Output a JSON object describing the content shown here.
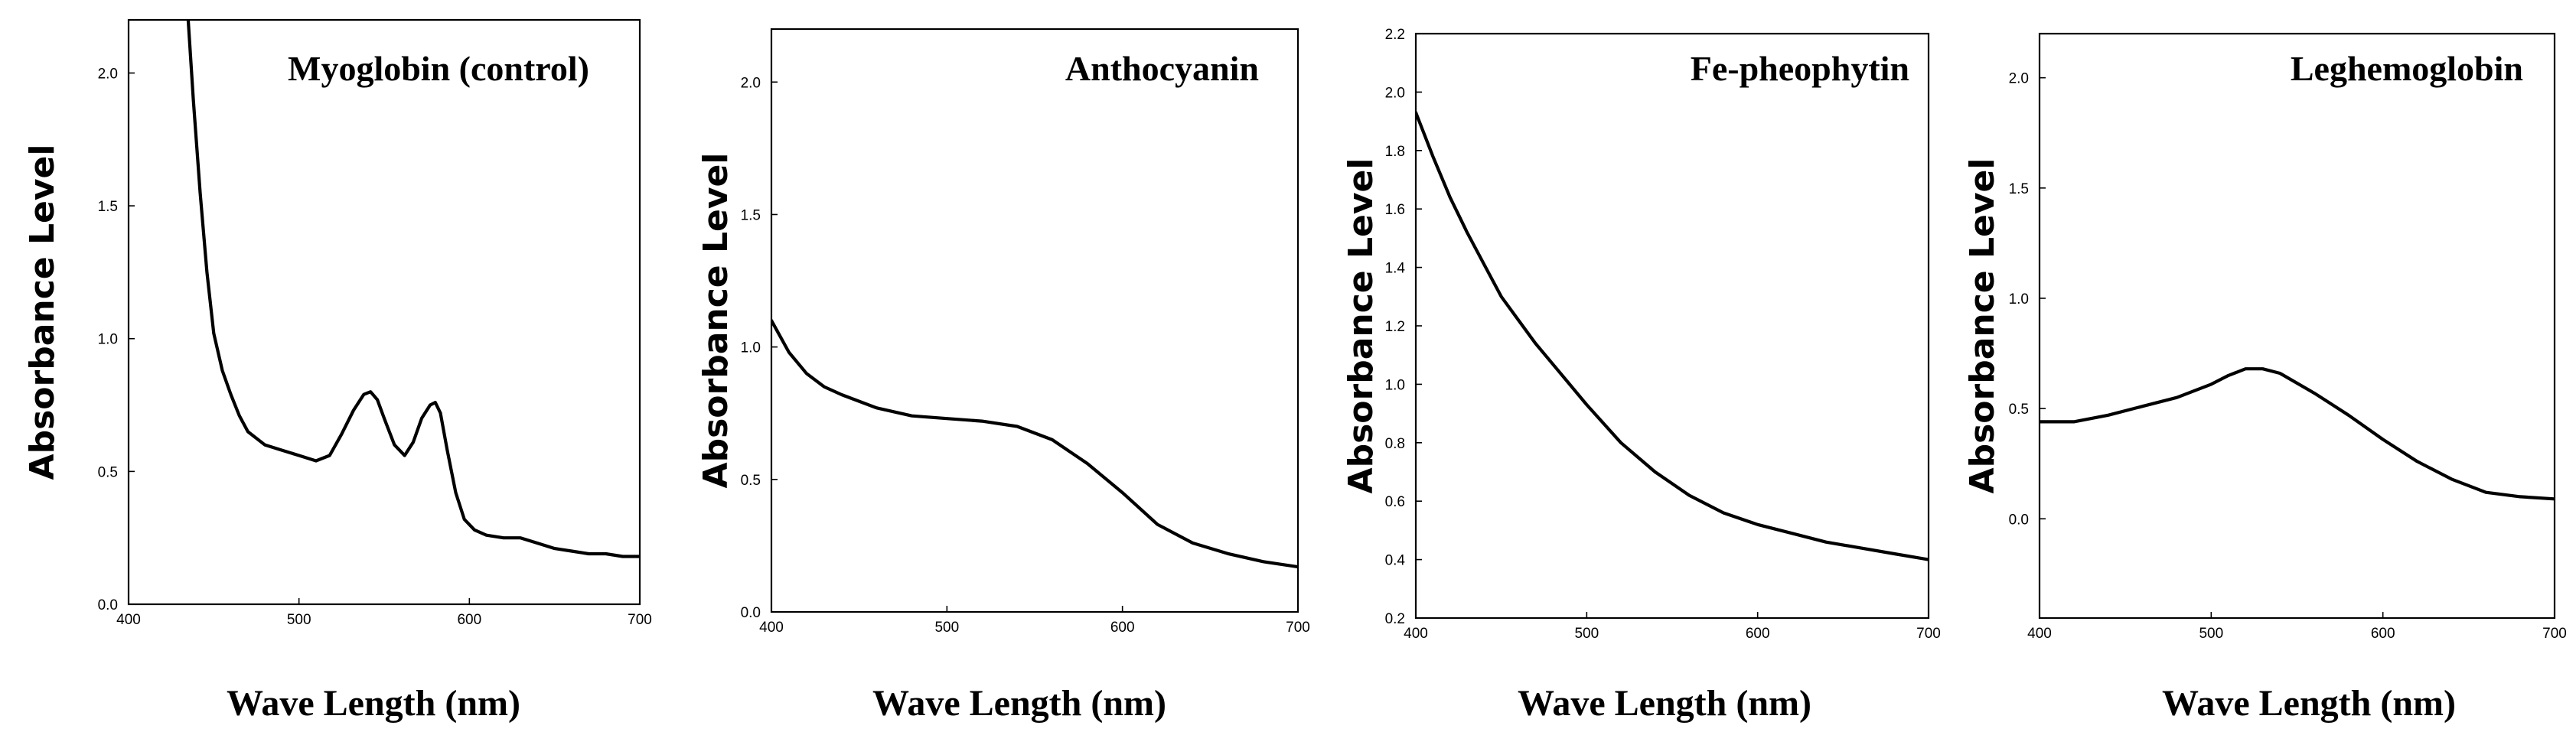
{
  "chart_data": [
    {
      "type": "line",
      "title": "Myoglobin (control)",
      "xlabel": "Wave Length (nm)",
      "ylabel": "Absorbance Level",
      "xlim": [
        400,
        700
      ],
      "ylim": [
        0.0,
        2.2
      ],
      "xticks": [
        "400",
        "500",
        "600",
        "700"
      ],
      "yticks": [
        "0.0",
        "0.5",
        "1.0",
        "1.5",
        "2.0"
      ],
      "series": [
        {
          "name": "Myoglobin (control)",
          "x": [
            435,
            438,
            442,
            446,
            450,
            455,
            460,
            465,
            470,
            480,
            490,
            500,
            510,
            518,
            525,
            532,
            538,
            542,
            546,
            550,
            556,
            562,
            567,
            572,
            577,
            580,
            583,
            587,
            592,
            597,
            603,
            610,
            620,
            630,
            640,
            650,
            660,
            670,
            680,
            690,
            700
          ],
          "y": [
            2.2,
            1.9,
            1.55,
            1.25,
            1.02,
            0.88,
            0.79,
            0.71,
            0.65,
            0.6,
            0.58,
            0.56,
            0.54,
            0.56,
            0.64,
            0.73,
            0.79,
            0.8,
            0.77,
            0.7,
            0.6,
            0.56,
            0.61,
            0.7,
            0.75,
            0.76,
            0.72,
            0.58,
            0.42,
            0.32,
            0.28,
            0.26,
            0.25,
            0.25,
            0.23,
            0.21,
            0.2,
            0.19,
            0.19,
            0.18,
            0.18
          ]
        }
      ]
    },
    {
      "type": "line",
      "title": "Anthocyanin",
      "xlabel": "Wave Length (nm)",
      "ylabel": "Absorbance Level",
      "xlim": [
        400,
        700
      ],
      "ylim": [
        0.0,
        2.2
      ],
      "xticks": [
        "400",
        "500",
        "600",
        "700"
      ],
      "yticks": [
        "0.0",
        "0.5",
        "1.0",
        "1.5",
        "2.0"
      ],
      "series": [
        {
          "name": "Anthocyanin",
          "x": [
            400,
            410,
            420,
            430,
            440,
            460,
            480,
            500,
            520,
            540,
            560,
            580,
            600,
            620,
            640,
            660,
            680,
            700
          ],
          "y": [
            1.1,
            0.98,
            0.9,
            0.85,
            0.82,
            0.77,
            0.74,
            0.73,
            0.72,
            0.7,
            0.65,
            0.56,
            0.45,
            0.33,
            0.26,
            0.22,
            0.19,
            0.17
          ]
        }
      ]
    },
    {
      "type": "line",
      "title": "Fe-pheophytin",
      "xlabel": "Wave Length (nm)",
      "ylabel": "Absorbance Level",
      "xlim": [
        400,
        700
      ],
      "ylim": [
        0.2,
        2.2
      ],
      "xticks": [
        "400",
        "500",
        "600",
        "700"
      ],
      "yticks": [
        "0.2",
        "0.4",
        "0.6",
        "0.8",
        "1.0",
        "1.2",
        "1.4",
        "1.6",
        "1.8",
        "2.0",
        "2.2"
      ],
      "series": [
        {
          "name": "Fe-pheophytin",
          "x": [
            400,
            410,
            420,
            430,
            440,
            450,
            460,
            470,
            480,
            490,
            500,
            520,
            540,
            560,
            580,
            600,
            620,
            640,
            660,
            680,
            700
          ],
          "y": [
            1.93,
            1.78,
            1.64,
            1.52,
            1.41,
            1.3,
            1.22,
            1.14,
            1.07,
            1.0,
            0.93,
            0.8,
            0.7,
            0.62,
            0.56,
            0.52,
            0.49,
            0.46,
            0.44,
            0.42,
            0.4
          ]
        }
      ]
    },
    {
      "type": "line",
      "title": "Leghemoglobin",
      "xlabel": "Wave Length (nm)",
      "ylabel": "Absorbance Level",
      "xlim": [
        400,
        700
      ],
      "ylim": [
        -0.45,
        2.2
      ],
      "xticks": [
        "400",
        "500",
        "600",
        "700"
      ],
      "yticks": [
        "0.0",
        "0.5",
        "1.0",
        "1.5",
        "2.0"
      ],
      "series": [
        {
          "name": "Leghemoglobin",
          "x": [
            400,
            420,
            440,
            460,
            480,
            500,
            510,
            520,
            530,
            540,
            560,
            580,
            600,
            620,
            640,
            660,
            680,
            700
          ],
          "y": [
            0.44,
            0.44,
            0.47,
            0.51,
            0.55,
            0.61,
            0.65,
            0.68,
            0.68,
            0.66,
            0.57,
            0.47,
            0.36,
            0.26,
            0.18,
            0.12,
            0.1,
            0.09
          ]
        }
      ]
    }
  ]
}
